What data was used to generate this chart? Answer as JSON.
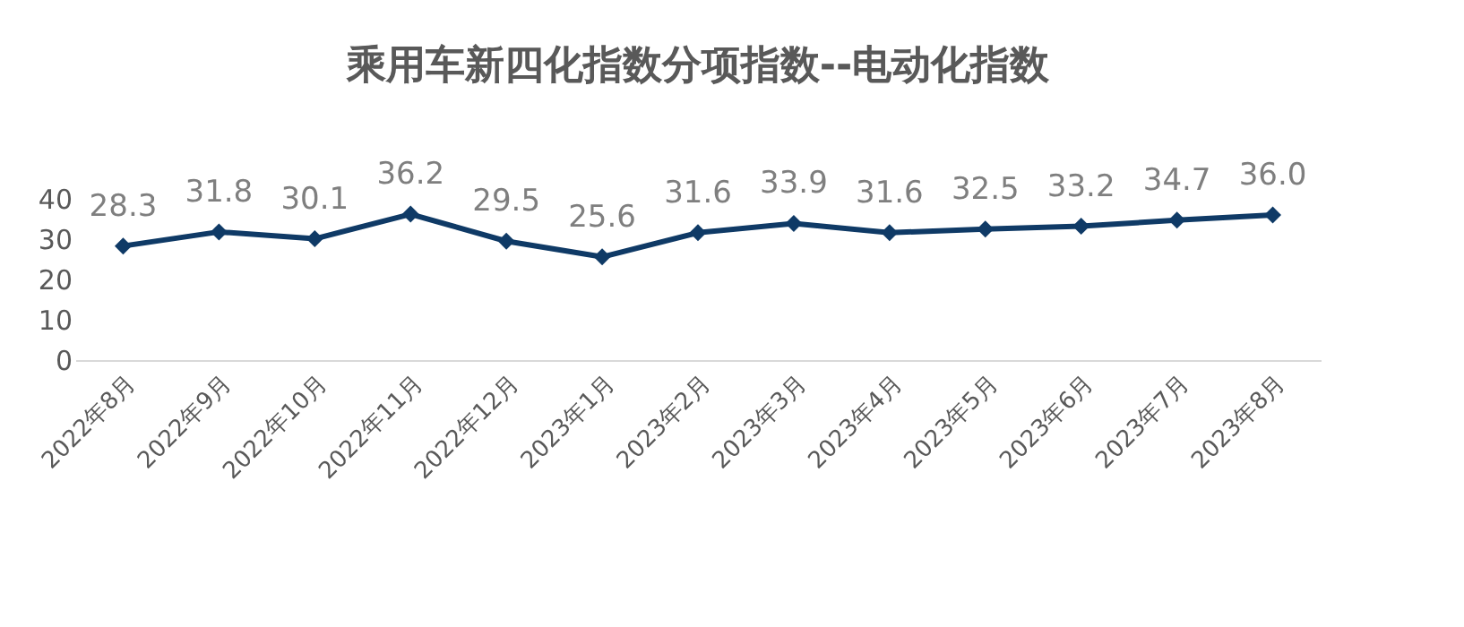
{
  "chart_data": {
    "type": "line",
    "title": "乘用车新四化指数分项指数--电动化指数",
    "categories": [
      "2022年8月",
      "2022年9月",
      "2022年10月",
      "2022年11月",
      "2022年12月",
      "2023年1月",
      "2023年2月",
      "2023年3月",
      "2023年4月",
      "2023年5月",
      "2023年6月",
      "2023年7月",
      "2023年8月"
    ],
    "series": [
      {
        "color": "#0f3a66",
        "values": [
          28.3,
          31.8,
          30.1,
          36.2,
          29.5,
          25.6,
          31.6,
          33.9,
          31.6,
          32.5,
          33.2,
          34.7,
          36.0
        ],
        "value_labels": [
          "28.3",
          "31.8",
          "30.1",
          "36.2",
          "29.5",
          "25.6",
          "31.6",
          "33.9",
          "31.6",
          "32.5",
          "33.2",
          "34.7",
          "36.0"
        ]
      }
    ],
    "ylim": [
      0,
      40
    ],
    "yticks": [
      0,
      10,
      20,
      30,
      40
    ],
    "grid": false,
    "marker": "diamond",
    "line_style": "solid"
  }
}
